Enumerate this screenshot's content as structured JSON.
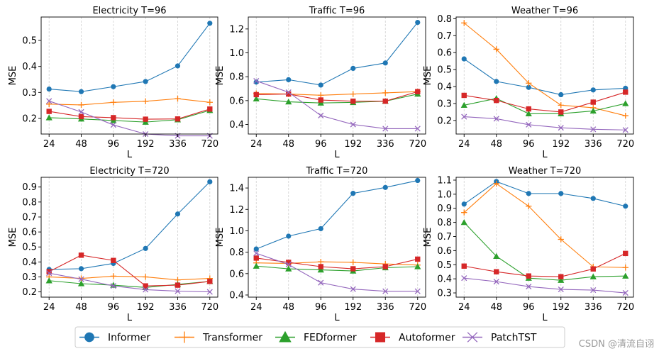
{
  "x_categories": [
    "24",
    "48",
    "96",
    "192",
    "336",
    "720"
  ],
  "colors": {
    "Informer": "#1f77b4",
    "Transformer": "#ff7f0e",
    "FEDformer": "#2ca02c",
    "Autoformer": "#d62728",
    "PatchTST": "#9467bd"
  },
  "legend": {
    "items": [
      {
        "name": "Informer",
        "marker": "circle"
      },
      {
        "name": "Transformer",
        "marker": "plus"
      },
      {
        "name": "FEDformer",
        "marker": "triangle"
      },
      {
        "name": "Autoformer",
        "marker": "square"
      },
      {
        "name": "PatchTST",
        "marker": "x"
      }
    ]
  },
  "watermark": "CSDN @清流自诩",
  "chart_data": [
    {
      "type": "line",
      "title": "Electricity T=96",
      "xlabel": "L",
      "ylabel": "MSE",
      "ylim": [
        0.14,
        0.59
      ],
      "yticks": [
        "0.2",
        "0.3",
        "0.4",
        "0.5"
      ],
      "categories": [
        "24",
        "48",
        "96",
        "192",
        "336",
        "720"
      ],
      "series": [
        {
          "name": "Informer",
          "values": [
            0.313,
            0.303,
            0.322,
            0.342,
            0.402,
            0.566
          ]
        },
        {
          "name": "Transformer",
          "values": [
            0.255,
            0.252,
            0.262,
            0.266,
            0.276,
            0.262
          ]
        },
        {
          "name": "FEDformer",
          "values": [
            0.203,
            0.198,
            0.192,
            0.186,
            0.195,
            0.231
          ]
        },
        {
          "name": "Autoformer",
          "values": [
            0.227,
            0.207,
            0.203,
            0.197,
            0.198,
            0.236
          ]
        },
        {
          "name": "PatchTST",
          "values": [
            0.267,
            0.225,
            0.175,
            0.14,
            0.133,
            0.133
          ]
        }
      ]
    },
    {
      "type": "line",
      "title": "Traffic T=96",
      "xlabel": "L",
      "ylabel": "MSE",
      "ylim": [
        0.32,
        1.3
      ],
      "yticks": [
        "0.4",
        "0.6",
        "0.8",
        "1.0",
        "1.2"
      ],
      "categories": [
        "24",
        "48",
        "96",
        "192",
        "336",
        "720"
      ],
      "series": [
        {
          "name": "Informer",
          "values": [
            0.755,
            0.775,
            0.73,
            0.87,
            0.915,
            1.255
          ]
        },
        {
          "name": "Transformer",
          "values": [
            0.66,
            0.655,
            0.645,
            0.655,
            0.665,
            0.675
          ]
        },
        {
          "name": "FEDformer",
          "values": [
            0.615,
            0.59,
            0.58,
            0.585,
            0.595,
            0.655
          ]
        },
        {
          "name": "Autoformer",
          "values": [
            0.65,
            0.655,
            0.605,
            0.595,
            0.595,
            0.675
          ]
        },
        {
          "name": "PatchTST",
          "values": [
            0.765,
            0.67,
            0.475,
            0.4,
            0.365,
            0.365
          ]
        }
      ]
    },
    {
      "type": "line",
      "title": "Weather T=96",
      "xlabel": "L",
      "ylabel": "MSE",
      "ylim": [
        0.12,
        0.81
      ],
      "yticks": [
        "0.2",
        "0.3",
        "0.4",
        "0.5",
        "0.6",
        "0.7",
        "0.8"
      ],
      "categories": [
        "24",
        "48",
        "96",
        "192",
        "336",
        "720"
      ],
      "series": [
        {
          "name": "Informer",
          "values": [
            0.563,
            0.43,
            0.395,
            0.352,
            0.38,
            0.39
          ]
        },
        {
          "name": "Transformer",
          "values": [
            0.775,
            0.62,
            0.42,
            0.29,
            0.275,
            0.228
          ]
        },
        {
          "name": "FEDformer",
          "values": [
            0.29,
            0.33,
            0.24,
            0.24,
            0.256,
            0.3
          ]
        },
        {
          "name": "Autoformer",
          "values": [
            0.348,
            0.318,
            0.268,
            0.25,
            0.308,
            0.367
          ]
        },
        {
          "name": "PatchTST",
          "values": [
            0.222,
            0.21,
            0.175,
            0.157,
            0.148,
            0.144
          ]
        }
      ]
    },
    {
      "type": "line",
      "title": "Electricity T=720",
      "xlabel": "L",
      "ylabel": "MSE",
      "ylim": [
        0.165,
        0.965
      ],
      "yticks": [
        "0.2",
        "0.3",
        "0.4",
        "0.5",
        "0.6",
        "0.7",
        "0.8",
        "0.9"
      ],
      "categories": [
        "24",
        "48",
        "96",
        "192",
        "336",
        "720"
      ],
      "series": [
        {
          "name": "Informer",
          "values": [
            0.35,
            0.355,
            0.39,
            0.49,
            0.72,
            0.935
          ]
        },
        {
          "name": "Transformer",
          "values": [
            0.3,
            0.29,
            0.305,
            0.3,
            0.28,
            0.29
          ]
        },
        {
          "name": "FEDformer",
          "values": [
            0.275,
            0.255,
            0.245,
            0.23,
            0.25,
            0.27
          ]
        },
        {
          "name": "Autoformer",
          "values": [
            0.335,
            0.445,
            0.41,
            0.24,
            0.245,
            0.27
          ]
        },
        {
          "name": "PatchTST",
          "values": [
            0.325,
            0.285,
            0.24,
            0.215,
            0.205,
            0.2
          ]
        }
      ]
    },
    {
      "type": "line",
      "title": "Traffic T=720",
      "xlabel": "L",
      "ylabel": "MSE",
      "ylim": [
        0.38,
        1.5
      ],
      "yticks": [
        "0.4",
        "0.6",
        "0.8",
        "1.0",
        "1.2",
        "1.4"
      ],
      "categories": [
        "24",
        "48",
        "96",
        "192",
        "336",
        "720"
      ],
      "series": [
        {
          "name": "Informer",
          "values": [
            0.83,
            0.95,
            1.02,
            1.35,
            1.405,
            1.47
          ]
        },
        {
          "name": "Transformer",
          "values": [
            0.7,
            0.695,
            0.71,
            0.705,
            0.69,
            0.68
          ]
        },
        {
          "name": "FEDformer",
          "values": [
            0.67,
            0.645,
            0.635,
            0.625,
            0.655,
            0.665
          ]
        },
        {
          "name": "Autoformer",
          "values": [
            0.745,
            0.705,
            0.665,
            0.645,
            0.665,
            0.735
          ]
        },
        {
          "name": "PatchTST",
          "values": [
            0.79,
            0.685,
            0.515,
            0.455,
            0.435,
            0.435
          ]
        }
      ]
    },
    {
      "type": "line",
      "title": "Weather T=720",
      "xlabel": "L",
      "ylabel": "MSE",
      "ylim": [
        0.27,
        1.12
      ],
      "yticks": [
        "0.3",
        "0.4",
        "0.5",
        "0.6",
        "0.7",
        "0.8",
        "0.9",
        "1.0",
        "1.1"
      ],
      "categories": [
        "24",
        "48",
        "96",
        "192",
        "336",
        "720"
      ],
      "series": [
        {
          "name": "Informer",
          "values": [
            0.93,
            1.09,
            1.005,
            1.005,
            0.97,
            0.915
          ]
        },
        {
          "name": "Transformer",
          "values": [
            0.87,
            1.075,
            0.915,
            0.68,
            0.485,
            0.48
          ]
        },
        {
          "name": "FEDformer",
          "values": [
            0.8,
            0.56,
            0.405,
            0.39,
            0.415,
            0.42
          ]
        },
        {
          "name": "Autoformer",
          "values": [
            0.49,
            0.45,
            0.42,
            0.415,
            0.47,
            0.58
          ]
        },
        {
          "name": "PatchTST",
          "values": [
            0.405,
            0.38,
            0.345,
            0.325,
            0.32,
            0.3
          ]
        }
      ]
    }
  ]
}
